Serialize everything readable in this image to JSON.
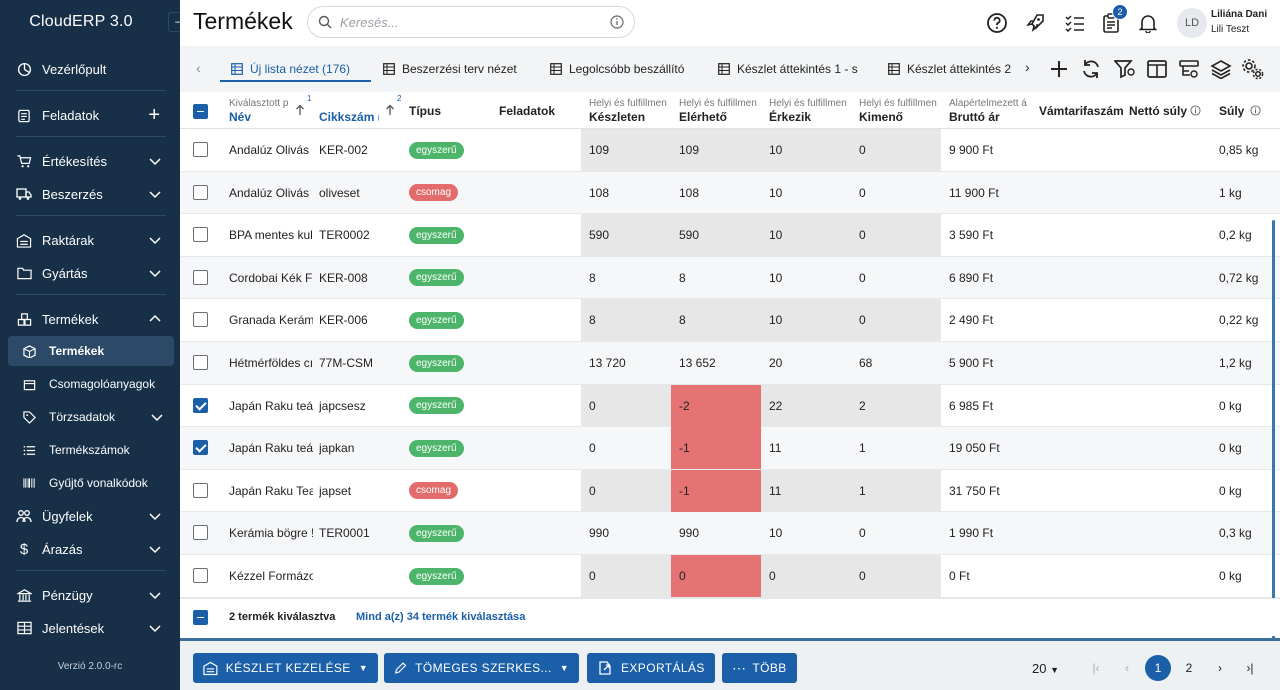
{
  "app": {
    "brand": "CloudERP 3.0",
    "version": "Verzió 2.0.0-rc",
    "collapse_glyph": "⊣"
  },
  "sidebar": {
    "items": [
      {
        "label": "Vezérlőpult",
        "icon": "dashboard-icon"
      },
      {
        "label": "Feladatok",
        "icon": "tasks-icon"
      },
      {
        "label": "Értékesítés",
        "icon": "cart-icon"
      },
      {
        "label": "Beszerzés",
        "icon": "truck-icon"
      },
      {
        "label": "Raktárak",
        "icon": "warehouse-icon"
      },
      {
        "label": "Gyártás",
        "icon": "factory-icon"
      },
      {
        "label": "Termékek",
        "icon": "products-icon"
      },
      {
        "label": "Ügyfelek",
        "icon": "customers-icon"
      },
      {
        "label": "Árazás",
        "icon": "dollar-icon"
      },
      {
        "label": "Pénzügy",
        "icon": "bank-icon"
      },
      {
        "label": "Jelentések",
        "icon": "table-icon"
      }
    ],
    "subitems": [
      {
        "label": "Termékek",
        "icon": "box-icon"
      },
      {
        "label": "Csomagolóanyagok",
        "icon": "package-icon"
      },
      {
        "label": "Törzsadatok",
        "icon": "tag-icon"
      },
      {
        "label": "Termékszámok",
        "icon": "list-icon"
      },
      {
        "label": "Gyűjtő vonalkódok",
        "icon": "barcode-icon"
      }
    ]
  },
  "header": {
    "title": "Termékek",
    "search_placeholder": "Keresés...",
    "notification_count": "2",
    "user_initials": "LD",
    "user_name": "Liliána Dani",
    "user_org": "Lili Teszt"
  },
  "tabs": [
    {
      "label": "Új lista nézet (176)",
      "active": true
    },
    {
      "label": "Beszerzési terv nézet"
    },
    {
      "label": "Legolcsóbb beszállító"
    },
    {
      "label": "Készlet áttekintés 1 - s"
    },
    {
      "label": "Készlet áttekintés 2"
    }
  ],
  "columns": {
    "name_sub": "Kiválasztott p",
    "name": "Név",
    "name_sort": "1",
    "sku": "Cikkszám (",
    "sku_sort": "2",
    "type": "Típus",
    "tasks": "Feladatok",
    "stock_sub": "Helyi és fulfillmen",
    "stock": "Készleten",
    "avail_sub": "Helyi és fulfillmen",
    "avail": "Elérhető",
    "incoming_sub": "Helyi és fulfillmen",
    "incoming": "Érkezik",
    "outgoing_sub": "Helyi és fulfillmen",
    "outgoing": "Kimenő",
    "gross_sub": "Alapértelmezett á",
    "gross": "Bruttó ár",
    "customs": "Vámtarifaszám",
    "net_weight": "Nettó súly",
    "weight": "Súly"
  },
  "rows": [
    {
      "name": "Andalúz Olivás",
      "sku": "KER-002",
      "type": "egyszerű",
      "stock": "109",
      "avail": "109",
      "incoming": "10",
      "outgoing": "0",
      "price": "9 900  Ft",
      "weight": "0,85 kg",
      "checked": false
    },
    {
      "name": "Andalúz Olivás",
      "sku": "oliveset",
      "type": "csomag",
      "stock": "108",
      "avail": "108",
      "incoming": "10",
      "outgoing": "0",
      "price": "11 900  Ft",
      "weight": "1 kg",
      "checked": false
    },
    {
      "name": "BPA mentes kul",
      "sku": "TER0002",
      "type": "egyszerű",
      "stock": "590",
      "avail": "590",
      "incoming": "10",
      "outgoing": "0",
      "price": "3 590  Ft",
      "weight": "0,2 kg",
      "checked": false
    },
    {
      "name": "Cordobai Kék F",
      "sku": "KER-008",
      "type": "egyszerű",
      "stock": "8",
      "avail": "8",
      "incoming": "10",
      "outgoing": "0",
      "price": "6 890  Ft",
      "weight": "0,72 kg",
      "checked": false
    },
    {
      "name": "Granada Kerám",
      "sku": "KER-006",
      "type": "egyszerű",
      "stock": "8",
      "avail": "8",
      "incoming": "10",
      "outgoing": "0",
      "price": "2 490  Ft",
      "weight": "0,22 kg",
      "checked": false
    },
    {
      "name": "Hétmérföldes cı",
      "sku": "77M-CSM",
      "type": "egyszerű",
      "stock": "13 720",
      "avail": "13 652",
      "incoming": "20",
      "outgoing": "68",
      "price": "5 900  Ft",
      "weight": "1,2 kg",
      "checked": false
    },
    {
      "name": "Japán Raku teá",
      "sku": "japcsesz",
      "type": "egyszerű",
      "stock": "0",
      "avail": "-2",
      "incoming": "22",
      "outgoing": "2",
      "price": "6 985  Ft",
      "weight": "0 kg",
      "checked": true,
      "neg": true
    },
    {
      "name": "Japán Raku teá",
      "sku": "japkan",
      "type": "egyszerű",
      "stock": "0",
      "avail": "-1",
      "incoming": "11",
      "outgoing": "1",
      "price": "19 050  Ft",
      "weight": "0 kg",
      "checked": true,
      "neg": true
    },
    {
      "name": "Japán Raku Tea",
      "sku": "japset",
      "type": "csomag",
      "stock": "0",
      "avail": "-1",
      "incoming": "11",
      "outgoing": "1",
      "price": "31 750  Ft",
      "weight": "0 kg",
      "checked": false,
      "neg": true
    },
    {
      "name": "Kerámia bögre !",
      "sku": "TER0001",
      "type": "egyszerű",
      "stock": "990",
      "avail": "990",
      "incoming": "10",
      "outgoing": "0",
      "price": "1 990  Ft",
      "weight": "0,3 kg",
      "checked": false
    },
    {
      "name": "Kézzel Formázo",
      "sku": "",
      "type": "egyszerű",
      "stock": "0",
      "avail": "0",
      "incoming": "0",
      "outgoing": "0",
      "price": "0  Ft",
      "weight": "0 kg",
      "checked": false,
      "neg": true
    }
  ],
  "selection": {
    "count_text": "2 termék kiválasztva",
    "select_all_text": "Mind a(z) 34 termék kiválasztása"
  },
  "footer": {
    "stock_btn": "KÉSZLET KEZELÉSE",
    "bulk_btn": "TÖMEGES SZERKES...",
    "export_btn": "EXPORTÁLÁS",
    "more_btn": "TÖBB",
    "page_size": "20",
    "pages": [
      "1",
      "2"
    ]
  },
  "colors": {
    "sidebar": "#172f47",
    "accent": "#1a5fa8",
    "green_badge": "#4cb56a",
    "red_badge": "#e26b6b",
    "negative_cell": "#e57373"
  }
}
